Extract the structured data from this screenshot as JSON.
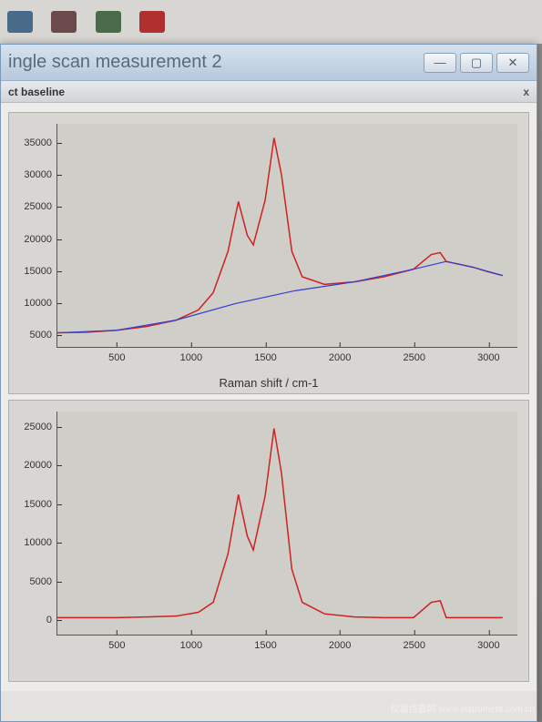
{
  "toolbar": {
    "icons": [
      {
        "name": "tool-icon-1",
        "color": "#4a6a8a"
      },
      {
        "name": "tool-icon-2",
        "color": "#6a4a4a"
      },
      {
        "name": "tool-icon-3",
        "color": "#4a6a4a"
      },
      {
        "name": "tool-icon-4",
        "color": "#b03030"
      }
    ]
  },
  "window": {
    "title": "ingle scan measurement 2",
    "panel_title": "ct baseline",
    "minimize": "—",
    "maximize": "▢",
    "close": "✕",
    "panel_close": "x"
  },
  "chart1": {
    "type": "line",
    "xlabel": "Raman shift / cm-1",
    "xlim": [
      100,
      3200
    ],
    "ylim": [
      3000,
      38000
    ],
    "xticks": [
      500,
      1000,
      1500,
      2000,
      2500,
      3000
    ],
    "yticks": [
      5000,
      10000,
      15000,
      20000,
      25000,
      30000,
      35000
    ],
    "background_color": "#d0cec8",
    "grid_color": "#c8c6c0",
    "series": [
      {
        "name": "raw-spectrum",
        "color": "#d02020",
        "line_width": 1.5,
        "points": [
          [
            100,
            5200
          ],
          [
            300,
            5300
          ],
          [
            500,
            5600
          ],
          [
            700,
            6200
          ],
          [
            900,
            7200
          ],
          [
            1050,
            8800
          ],
          [
            1150,
            11500
          ],
          [
            1250,
            18000
          ],
          [
            1320,
            25800
          ],
          [
            1380,
            20500
          ],
          [
            1420,
            19000
          ],
          [
            1500,
            26000
          ],
          [
            1560,
            35800
          ],
          [
            1610,
            30000
          ],
          [
            1680,
            18000
          ],
          [
            1750,
            14000
          ],
          [
            1900,
            12800
          ],
          [
            2100,
            13200
          ],
          [
            2300,
            14000
          ],
          [
            2500,
            15200
          ],
          [
            2620,
            17500
          ],
          [
            2680,
            17800
          ],
          [
            2720,
            16400
          ],
          [
            2800,
            16000
          ],
          [
            2900,
            15500
          ],
          [
            3000,
            14800
          ],
          [
            3100,
            14200
          ]
        ]
      },
      {
        "name": "baseline",
        "color": "#3040d0",
        "line_width": 1.2,
        "points": [
          [
            100,
            5200
          ],
          [
            500,
            5600
          ],
          [
            900,
            7200
          ],
          [
            1300,
            9800
          ],
          [
            1700,
            11800
          ],
          [
            2100,
            13200
          ],
          [
            2500,
            15200
          ],
          [
            2720,
            16400
          ],
          [
            2900,
            15500
          ],
          [
            3100,
            14200
          ]
        ]
      }
    ]
  },
  "chart2": {
    "type": "line",
    "xlabel": "",
    "xlim": [
      100,
      3200
    ],
    "ylim": [
      -2000,
      27000
    ],
    "xticks": [
      500,
      1000,
      1500,
      2000,
      2500,
      3000
    ],
    "yticks": [
      0,
      5000,
      10000,
      15000,
      20000,
      25000
    ],
    "background_color": "#d0cec8",
    "series": [
      {
        "name": "corrected-spectrum",
        "color": "#d02020",
        "line_width": 1.5,
        "points": [
          [
            100,
            200
          ],
          [
            300,
            200
          ],
          [
            500,
            200
          ],
          [
            700,
            300
          ],
          [
            900,
            400
          ],
          [
            1050,
            900
          ],
          [
            1150,
            2200
          ],
          [
            1250,
            8500
          ],
          [
            1320,
            16200
          ],
          [
            1380,
            10800
          ],
          [
            1420,
            9000
          ],
          [
            1500,
            16000
          ],
          [
            1560,
            24800
          ],
          [
            1610,
            19000
          ],
          [
            1680,
            6500
          ],
          [
            1750,
            2200
          ],
          [
            1900,
            700
          ],
          [
            2100,
            300
          ],
          [
            2300,
            200
          ],
          [
            2500,
            200
          ],
          [
            2620,
            2200
          ],
          [
            2680,
            2400
          ],
          [
            2720,
            200
          ],
          [
            2800,
            200
          ],
          [
            2900,
            200
          ],
          [
            3000,
            200
          ],
          [
            3100,
            200
          ]
        ]
      }
    ]
  },
  "watermark": "仪器信息网 www.instrument.com.cn"
}
